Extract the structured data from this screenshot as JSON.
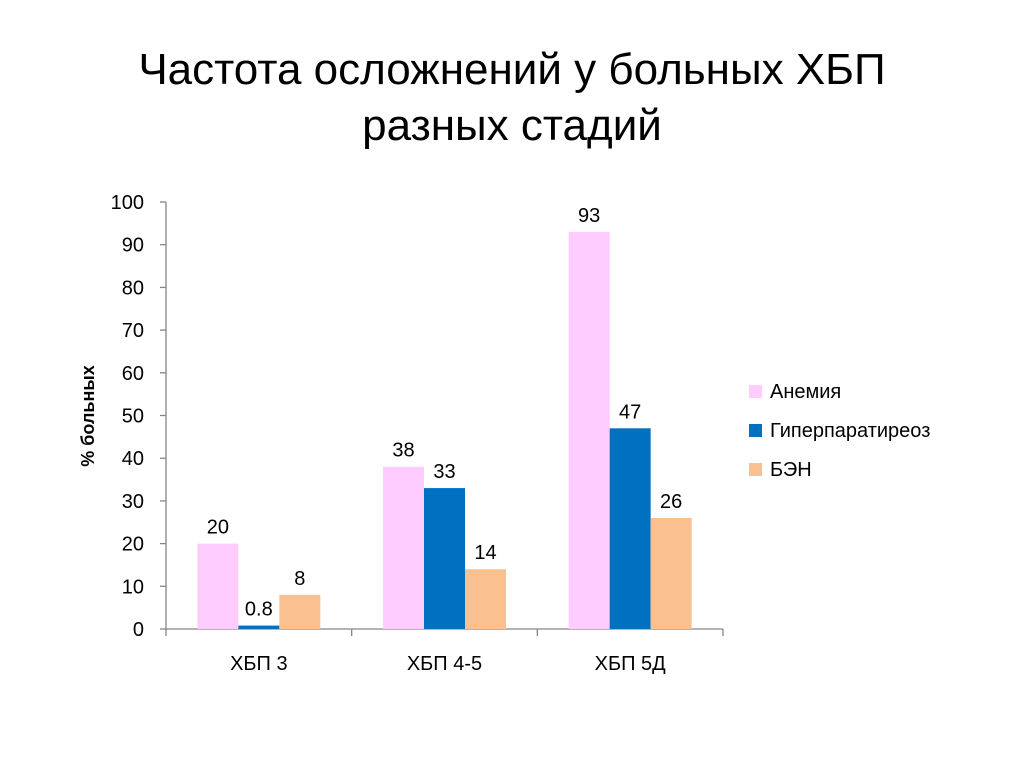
{
  "title": {
    "line1": "Частота осложнений у больных ХБП",
    "line2": "разных стадий"
  },
  "chart_data": {
    "type": "bar",
    "categories": [
      "ХБП 3",
      "ХБП 4-5",
      "ХБП 5Д"
    ],
    "series": [
      {
        "name": "Анемия",
        "values": [
          20,
          38,
          93
        ],
        "labels": [
          "20",
          "38",
          "93"
        ],
        "color": "#FFCCFF"
      },
      {
        "name": "Гиперпаратиреоз",
        "values": [
          0.8,
          33,
          47
        ],
        "labels": [
          "0.8",
          "33",
          "47"
        ],
        "color": "#0070C0"
      },
      {
        "name": "БЭН",
        "values": [
          8,
          14,
          26
        ],
        "labels": [
          "8",
          "14",
          "26"
        ],
        "color": "#FAC090"
      }
    ],
    "xlabel": "",
    "ylabel": "% больных",
    "ylim": [
      0,
      100
    ],
    "yticks": [
      0,
      10,
      20,
      30,
      40,
      50,
      60,
      70,
      80,
      90,
      100
    ],
    "grid": false,
    "legend_position": "right"
  }
}
